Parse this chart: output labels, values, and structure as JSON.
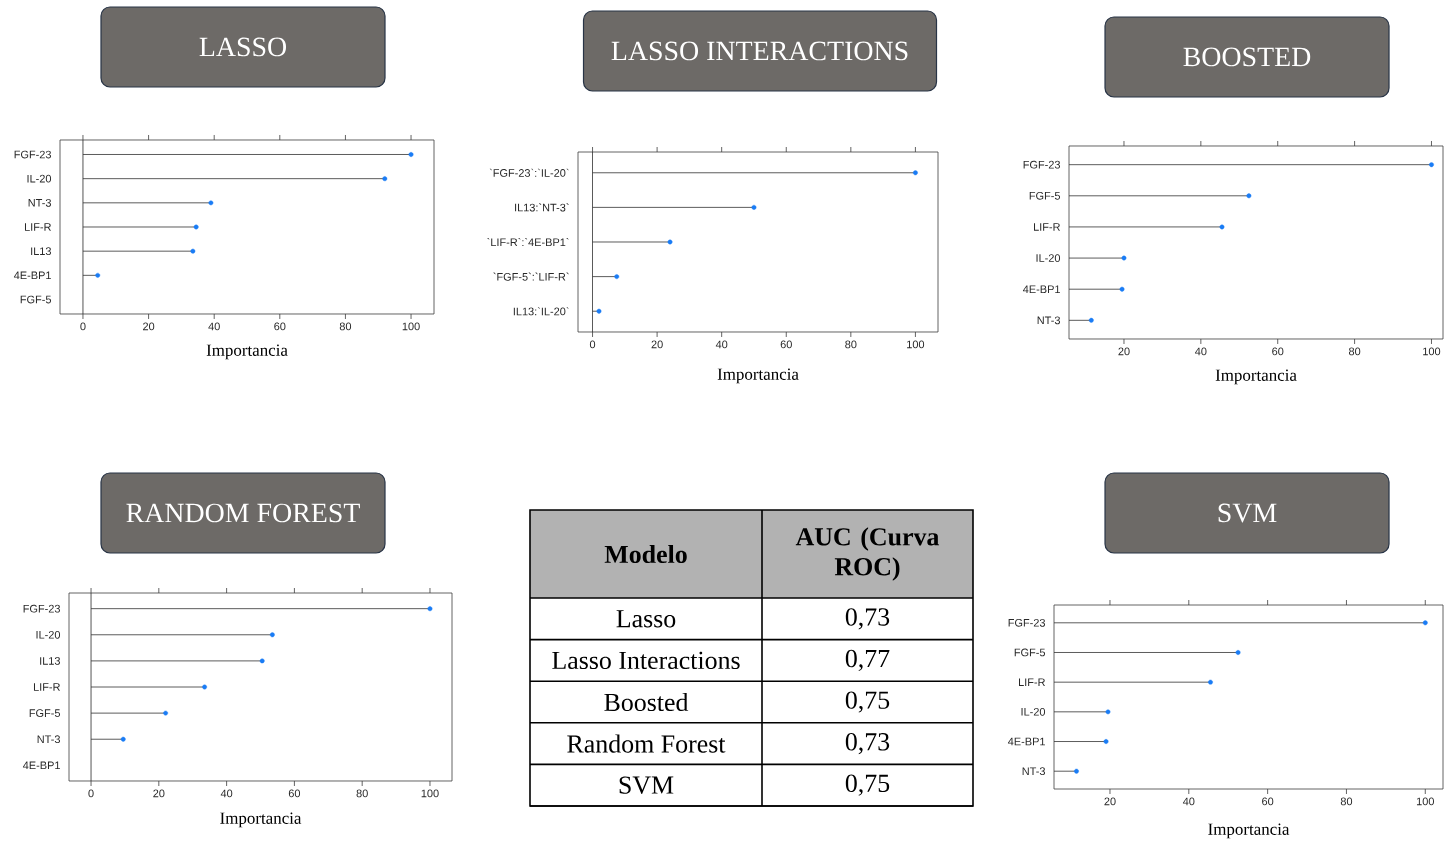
{
  "chart_data": [
    {
      "type": "lollipop",
      "title": "LASSO",
      "xlabel": "Importancia",
      "orientation": "horizontal",
      "marker": "circle",
      "categories": [
        "FGF-23",
        "IL-20",
        "NT-3",
        "LIF-R",
        "IL13",
        "4E-BP1",
        "FGF-5"
      ],
      "values": [
        100,
        92,
        39,
        34.5,
        33.5,
        4.5,
        null
      ],
      "color": "#1a7cf5",
      "xlim": [
        -7,
        107
      ],
      "xticks": [
        0,
        20,
        40,
        60,
        80,
        100
      ],
      "ref_lines": [
        {
          "axis": "x",
          "value": 0
        }
      ]
    },
    {
      "type": "lollipop",
      "title": "LASSO INTERACTIONS",
      "xlabel": "Importancia",
      "orientation": "horizontal",
      "marker": "circle",
      "categories": [
        "`FGF-23`:`IL-20`",
        "IL13:`NT-3`",
        "`LIF-R`:`4E-BP1`",
        "`FGF-5`:`LIF-R`",
        "IL13:`IL-20`"
      ],
      "values": [
        100,
        50,
        24,
        7.5,
        2
      ],
      "color": "#1a7cf5",
      "xlim": [
        -4.5,
        107
      ],
      "xticks": [
        0,
        20,
        40,
        60,
        80,
        100
      ],
      "ref_lines": [
        {
          "axis": "x",
          "value": 0
        }
      ]
    },
    {
      "type": "lollipop",
      "title": "BOOSTED",
      "xlabel": "Importancia",
      "orientation": "horizontal",
      "marker": "circle",
      "categories": [
        "FGF-23",
        "FGF-5",
        "LIF-R",
        "IL-20",
        "4E-BP1",
        "NT-3"
      ],
      "values": [
        100,
        52.5,
        45.5,
        20,
        19.5,
        11.5
      ],
      "color": "#1a7cf5",
      "xlim": [
        5.7,
        103
      ],
      "xticks": [
        20,
        40,
        60,
        80,
        100
      ]
    },
    {
      "type": "lollipop",
      "title": "RANDOM FOREST",
      "xlabel": "Importancia",
      "orientation": "horizontal",
      "marker": "circle",
      "categories": [
        "FGF-23",
        "IL-20",
        "IL13",
        "LIF-R",
        "FGF-5",
        "NT-3",
        "4E-BP1"
      ],
      "values": [
        100,
        53.5,
        50.5,
        33.5,
        22,
        9.5,
        null
      ],
      "color": "#1a7cf5",
      "xlim": [
        -6.5,
        106.5
      ],
      "xticks": [
        0,
        20,
        40,
        60,
        80,
        100
      ],
      "ref_lines": [
        {
          "axis": "x",
          "value": 0
        }
      ]
    },
    {
      "type": "other",
      "annotations": [
        "Modelo",
        "AUC (Curva ROC)"
      ],
      "categories": [
        "Lasso",
        "Lasso Interactions",
        "Boosted",
        "Random Forest",
        "SVM"
      ],
      "value_labels": [
        "0,73",
        "0,77",
        "0,75",
        "0,73",
        "0,75"
      ]
    },
    {
      "type": "lollipop",
      "title": "SVM",
      "xlabel": "Importancia",
      "orientation": "horizontal",
      "marker": "circle",
      "categories": [
        "FGF-23",
        "FGF-5",
        "LIF-R",
        "IL-20",
        "4E-BP1",
        "NT-3"
      ],
      "values": [
        100,
        52.5,
        45.5,
        19.5,
        19,
        11.5
      ],
      "color": "#1a7cf5",
      "xlim": [
        5.8,
        104.5
      ],
      "xticks": [
        20,
        40,
        60,
        80,
        100
      ]
    }
  ]
}
